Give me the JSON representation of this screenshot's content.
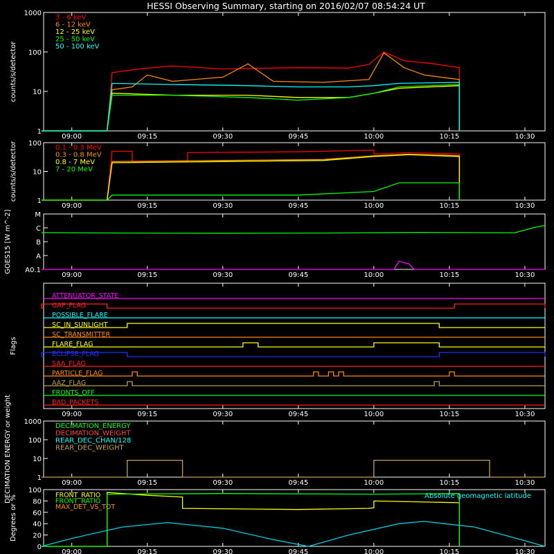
{
  "title": "HESSI Observing Summary, starting on 2016/02/07 08:54:24 UT",
  "time_axis": {
    "range": [
      "08:54:24",
      "10:34:00"
    ],
    "ticks": [
      "09:00",
      "09:15",
      "09:30",
      "09:45",
      "10:00",
      "10:15",
      "10:30"
    ]
  },
  "chart_data": [
    {
      "name": "count-rates-low",
      "type": "line",
      "ylabel": "counts/s/detector",
      "yscale": "log",
      "ylim": [
        1,
        1000
      ],
      "ytick_labels": [
        "1",
        "10",
        "100",
        "1000"
      ],
      "legend_position": "top-left",
      "series": [
        {
          "name": "3 - 6 keV",
          "color": "#ff0000",
          "x": [
            "08:54",
            "09:07",
            "09:08",
            "09:14",
            "09:20",
            "09:30",
            "09:45",
            "09:55",
            "09:59",
            "10:02",
            "10:06",
            "10:12",
            "10:17",
            "10:17"
          ],
          "y": [
            1,
            1,
            30,
            38,
            44,
            37,
            40,
            39,
            48,
            100,
            60,
            50,
            40,
            1
          ]
        },
        {
          "name": "6 - 12 keV",
          "color": "#ff8c00",
          "x": [
            "08:54",
            "09:07",
            "09:08",
            "09:12",
            "09:15",
            "09:20",
            "09:30",
            "09:35",
            "09:40",
            "09:50",
            "09:59",
            "10:02",
            "10:06",
            "10:10",
            "10:17",
            "10:17"
          ],
          "y": [
            1,
            1,
            11,
            13,
            26,
            18,
            23,
            50,
            18,
            17,
            20,
            95,
            40,
            26,
            20,
            1
          ]
        },
        {
          "name": "12 - 25 keV",
          "color": "#ffff00",
          "x": [
            "08:54",
            "09:07",
            "09:08",
            "09:20",
            "09:35",
            "09:45",
            "09:55",
            "10:00",
            "10:05",
            "10:17",
            "10:17"
          ],
          "y": [
            1,
            1,
            9,
            8,
            8,
            7,
            7,
            9,
            12,
            14,
            1
          ]
        },
        {
          "name": "25 - 50 keV",
          "color": "#00ff00",
          "x": [
            "08:54",
            "09:07",
            "09:08",
            "09:20",
            "09:35",
            "09:45",
            "09:55",
            "10:00",
            "10:05",
            "10:17",
            "10:17"
          ],
          "y": [
            1,
            1,
            8,
            8,
            7,
            6,
            7,
            9,
            13,
            15,
            1
          ]
        },
        {
          "name": "50 - 100 keV",
          "color": "#00ffff",
          "x": [
            "08:54",
            "09:07",
            "09:08",
            "09:20",
            "09:35",
            "09:45",
            "09:55",
            "10:00",
            "10:05",
            "10:17",
            "10:17"
          ],
          "y": [
            1,
            1,
            16,
            15,
            14,
            13,
            13,
            14,
            16,
            17,
            1
          ]
        }
      ]
    },
    {
      "name": "count-rates-high",
      "type": "line",
      "ylabel": "counts/s/detector",
      "yscale": "log",
      "ylim": [
        1,
        100
      ],
      "ytick_labels": [
        "1",
        "10",
        "100"
      ],
      "legend_position": "top-left",
      "series": [
        {
          "name": "0.1 - 0.3 MeV",
          "color": "#ff0000",
          "x": [
            "08:54",
            "09:07",
            "09:08",
            "09:12",
            "09:12",
            "09:23",
            "09:23",
            "09:45",
            "10:00",
            "10:00",
            "10:07",
            "10:17",
            "10:17"
          ],
          "y": [
            1,
            1,
            50,
            50,
            22,
            22,
            45,
            48,
            55,
            40,
            45,
            40,
            1
          ]
        },
        {
          "name": "0.3 - 0.8 MeV",
          "color": "#ff8c00",
          "x": [
            "08:54",
            "09:07",
            "09:08",
            "09:30",
            "09:50",
            "10:00",
            "10:07",
            "10:17",
            "10:17"
          ],
          "y": [
            1,
            1,
            22,
            24,
            26,
            35,
            40,
            35,
            1
          ]
        },
        {
          "name": "0.8 - 7 MeV",
          "color": "#ffff00",
          "x": [
            "08:54",
            "09:07",
            "09:08",
            "09:30",
            "09:50",
            "10:00",
            "10:07",
            "10:17",
            "10:17"
          ],
          "y": [
            1,
            1,
            20,
            22,
            24,
            33,
            38,
            33,
            1
          ]
        },
        {
          "name": "7 - 20 MeV",
          "color": "#00ff00",
          "x": [
            "08:54",
            "09:07",
            "09:08",
            "09:45",
            "10:00",
            "10:05",
            "10:17",
            "10:17"
          ],
          "y": [
            1,
            1,
            1.5,
            1.5,
            2,
            4,
            4,
            1
          ]
        }
      ]
    },
    {
      "name": "goes",
      "type": "line",
      "ylabel": "GOES15 [W m^-2]",
      "yscale": "log",
      "ytick_labels": [
        "A0.1",
        "A",
        "B",
        "C",
        "M"
      ],
      "ylim": [
        1e-09,
        1e-05
      ],
      "series": [
        {
          "name": "1 - 8 A",
          "color": "#00ff00",
          "x": [
            "08:54",
            "09:10",
            "09:30",
            "09:50",
            "10:10",
            "10:28",
            "10:32",
            "10:34"
          ],
          "y": [
            4.5e-07,
            4.2e-07,
            4.1e-07,
            4.2e-07,
            4.6e-07,
            4.4e-07,
            1.1e-06,
            1.5e-06
          ]
        },
        {
          "name": "0.5 - 4 A",
          "color": "#ff00ff",
          "x": [
            "08:54",
            "10:04",
            "10:05",
            "10:06",
            "10:07",
            "10:08",
            "10:34"
          ],
          "y": [
            1e-09,
            1e-09,
            4e-09,
            3e-09,
            2.5e-09,
            1e-09,
            1e-09
          ]
        }
      ]
    },
    {
      "name": "flags",
      "type": "table",
      "ylabel": "Flags",
      "rows": [
        {
          "name": "ATTENUATOR_STATE",
          "color": "#ff00ff",
          "on": []
        },
        {
          "name": "GAP_FLAG",
          "color": "#ff2020",
          "on": [
            [
              "08:54",
              "09:07"
            ],
            [
              "10:16",
              "10:34"
            ]
          ]
        },
        {
          "name": "POSSIBLE_FLARE",
          "color": "#00ffff",
          "on": []
        },
        {
          "name": "SC_IN_SUNLIGHT",
          "color": "#ffff00",
          "on": [
            [
              "09:11",
              "10:13"
            ]
          ]
        },
        {
          "name": "SC_TRANSMITTER",
          "color": "#ff8c00",
          "on": []
        },
        {
          "name": "FLARE_FLAG",
          "color": "#ffff00",
          "on": [
            [
              "09:34",
              "09:37"
            ],
            [
              "10:00",
              "10:13"
            ]
          ]
        },
        {
          "name": "ECLIPSE_FLAG",
          "color": "#2030ff",
          "on": [
            [
              "08:54",
              "09:11"
            ],
            [
              "10:13",
              "10:34"
            ]
          ]
        },
        {
          "name": "SAA_FLAG",
          "color": "#ff2020",
          "on": []
        },
        {
          "name": "PARTICLE_FLAG",
          "color": "#ff8c00",
          "on": [
            [
              "09:12",
              "09:13"
            ],
            [
              "09:48",
              "09:49"
            ],
            [
              "09:51",
              "09:52"
            ],
            [
              "09:53",
              "09:54"
            ],
            [
              "10:15",
              "10:16"
            ]
          ]
        },
        {
          "name": "AAZ_FLAG",
          "color": "#b8a040",
          "on": [
            [
              "09:11",
              "09:12"
            ],
            [
              "10:12",
              "10:13"
            ]
          ]
        },
        {
          "name": "FRONTS_OFF",
          "color": "#00ff00",
          "on": []
        },
        {
          "name": "BAD_PACKETS",
          "color": "#ff2020",
          "on": []
        }
      ]
    },
    {
      "name": "decimation",
      "type": "line",
      "ylabel": "DECIMATION ENERGY or weight",
      "yscale": "log",
      "ylim": [
        1,
        1000
      ],
      "ytick_labels": [
        "1",
        "10",
        "100",
        "1000"
      ],
      "legend_position": "top-left",
      "series": [
        {
          "name": "DECIMATION_ENERGY",
          "color": "#00ff00",
          "x": [],
          "y": []
        },
        {
          "name": "DECIMATION_WEIGHT",
          "color": "#ff4040",
          "x": [],
          "y": []
        },
        {
          "name": "REAR_DEC_CHAN/128",
          "color": "#00ffff",
          "x": [],
          "y": []
        },
        {
          "name": "REAR_DEC_WEIGHT",
          "color": "#c8a050",
          "x": [
            "08:54",
            "09:11",
            "09:11",
            "09:22",
            "09:22",
            "10:00",
            "10:00",
            "10:23",
            "10:23",
            "10:34"
          ],
          "y": [
            1,
            1,
            8,
            8,
            1,
            1,
            8,
            8,
            1,
            1
          ]
        }
      ]
    },
    {
      "name": "ratios",
      "type": "line",
      "ylabel": "Degrees or %",
      "ylim": [
        0,
        100
      ],
      "ytick_labels": [
        "0",
        "20",
        "40",
        "60",
        "80",
        "100"
      ],
      "legend_position": "top-left",
      "annotation": "Absolute geomagnetic latitude",
      "series": [
        {
          "name": "FRONT_RATIO",
          "color": "#ffff00",
          "x": [
            "08:54",
            "09:07",
            "09:07",
            "09:15",
            "09:22",
            "09:22",
            "09:45",
            "09:59",
            "10:00",
            "10:00",
            "10:17",
            "10:17"
          ],
          "y": [
            0,
            0,
            95,
            90,
            87,
            67,
            65,
            67,
            68,
            80,
            77,
            0
          ]
        },
        {
          "name": "FRONT_RATIO",
          "color": "#00ff00",
          "x": [
            "08:54",
            "09:07",
            "09:07",
            "09:30",
            "10:00",
            "10:17",
            "10:17"
          ],
          "y": [
            0,
            0,
            92,
            93,
            92,
            93,
            0
          ]
        },
        {
          "name": "MAX_DET_VS_TOT",
          "color": "#ff8c00",
          "x": [],
          "y": []
        },
        {
          "name": "Absolute geomagnetic latitude",
          "color": "#00d0e0",
          "x": [
            "08:54",
            "09:00",
            "09:10",
            "09:19",
            "09:30",
            "09:40",
            "09:47",
            "09:55",
            "10:05",
            "10:10",
            "10:20",
            "10:30",
            "10:34"
          ],
          "y": [
            0,
            14,
            34,
            42,
            32,
            12,
            0,
            20,
            40,
            44,
            34,
            10,
            0
          ]
        }
      ]
    }
  ]
}
